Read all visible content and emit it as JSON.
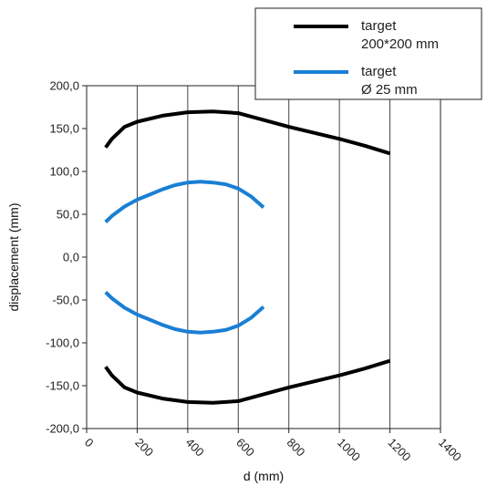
{
  "chart_data": {
    "type": "line",
    "xlabel": "d (mm)",
    "ylabel": "displacement (mm)",
    "xlim": [
      0,
      1400
    ],
    "ylim": [
      -200,
      200
    ],
    "x_ticks": [
      0,
      200,
      400,
      600,
      800,
      1000,
      1200,
      1400
    ],
    "y_ticks": [
      -200,
      -150,
      -100,
      -50,
      0,
      50,
      100,
      150,
      200
    ],
    "x_tick_labels": [
      "0",
      "200",
      "400",
      "600",
      "800",
      "1000",
      "1200",
      "1400"
    ],
    "y_tick_labels": [
      "-200,0",
      "-150,0",
      "-100,0",
      "-50,0",
      "0,0",
      "50,0",
      "100,0",
      "150,0",
      "200,0"
    ],
    "grid": "vertical",
    "legend_position": "top-right",
    "legend": [
      {
        "lines": [
          "target",
          "200*200 mm"
        ],
        "color": "#000000"
      },
      {
        "lines": [
          "target",
          "Ø 25 mm"
        ],
        "color": "#1a7fd4"
      }
    ],
    "series": [
      {
        "legend_index": 0,
        "color": "#000000",
        "x": [
          75,
          100,
          150,
          200,
          300,
          400,
          500,
          600,
          700,
          800,
          900,
          1000,
          1100,
          1200
        ],
        "y": [
          128,
          138,
          152,
          158,
          165,
          169,
          170,
          168,
          160,
          152,
          145,
          138,
          130,
          121
        ]
      },
      {
        "legend_index": 0,
        "color": "#000000",
        "x": [
          75,
          100,
          150,
          200,
          300,
          400,
          500,
          600,
          700,
          800,
          900,
          1000,
          1100,
          1200
        ],
        "y": [
          -128,
          -138,
          -152,
          -158,
          -165,
          -169,
          -170,
          -168,
          -160,
          -152,
          -145,
          -138,
          -130,
          -121
        ]
      },
      {
        "legend_index": 1,
        "color": "#1a7fd4",
        "x": [
          75,
          100,
          150,
          200,
          250,
          300,
          350,
          400,
          450,
          500,
          550,
          600,
          650,
          700
        ],
        "y": [
          41,
          48,
          59,
          67,
          73,
          79,
          84,
          87,
          88,
          87,
          85,
          80,
          71,
          58
        ]
      },
      {
        "legend_index": 1,
        "color": "#1a7fd4",
        "x": [
          75,
          100,
          150,
          200,
          250,
          300,
          350,
          400,
          450,
          500,
          550,
          600,
          650,
          700
        ],
        "y": [
          -41,
          -48,
          -59,
          -67,
          -73,
          -79,
          -84,
          -87,
          -88,
          -87,
          -85,
          -80,
          -71,
          -58
        ]
      }
    ]
  }
}
